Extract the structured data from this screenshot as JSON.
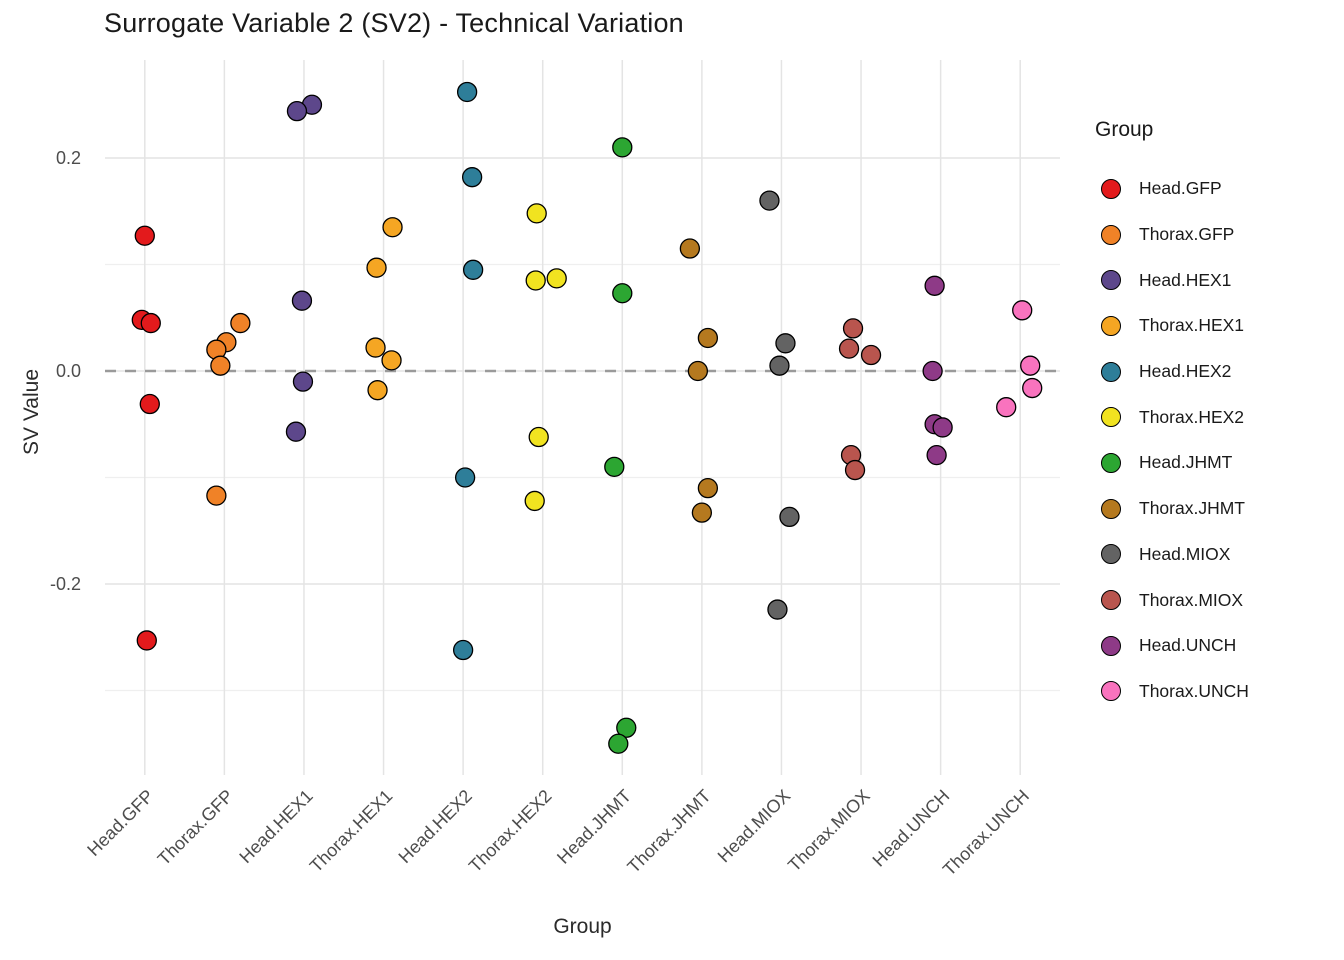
{
  "chart_data": {
    "type": "scatter",
    "title": "Surrogate Variable 2 (SV2) - Technical Variation",
    "xlabel": "Group",
    "ylabel": "SV Value",
    "legend_title": "Group",
    "grid": true,
    "legend_position": "right",
    "ylim": [
      -0.38,
      0.3
    ],
    "y_ticks": [
      {
        "label": "0.2",
        "value": 0.2
      },
      {
        "label": "0.0",
        "value": 0.0
      },
      {
        "label": "-0.2",
        "value": -0.2
      }
    ],
    "minor_ticks": [
      0.1,
      -0.1,
      -0.3
    ],
    "zero_line": {
      "value": 0,
      "style": "dashed",
      "color": "#9a9a9a"
    },
    "categories": [
      "Head.GFP",
      "Thorax.GFP",
      "Head.HEX1",
      "Thorax.HEX1",
      "Head.HEX2",
      "Thorax.HEX2",
      "Head.JHMT",
      "Thorax.JHMT",
      "Head.MIOX",
      "Thorax.MIOX",
      "Head.UNCH",
      "Thorax.UNCH"
    ],
    "groups": [
      {
        "name": "Head.GFP",
        "color": "#e31a1c",
        "points": [
          {
            "y": 0.127,
            "dx": 0
          },
          {
            "y": 0.048,
            "dx": -3
          },
          {
            "y": 0.045,
            "dx": 6
          },
          {
            "y": -0.031,
            "dx": 5
          },
          {
            "y": -0.253,
            "dx": 2
          }
        ]
      },
      {
        "name": "Thorax.GFP",
        "color": "#f08227",
        "points": [
          {
            "y": 0.045,
            "dx": 16
          },
          {
            "y": 0.027,
            "dx": 2
          },
          {
            "y": 0.02,
            "dx": -8
          },
          {
            "y": 0.005,
            "dx": -4
          },
          {
            "y": -0.117,
            "dx": -8
          }
        ]
      },
      {
        "name": "Head.HEX1",
        "color": "#5d478b",
        "points": [
          {
            "y": 0.25,
            "dx": 8
          },
          {
            "y": 0.244,
            "dx": -7
          },
          {
            "y": 0.066,
            "dx": -2
          },
          {
            "y": -0.01,
            "dx": -1
          },
          {
            "y": -0.057,
            "dx": -8
          }
        ]
      },
      {
        "name": "Thorax.HEX1",
        "color": "#f5a623",
        "points": [
          {
            "y": 0.135,
            "dx": 9
          },
          {
            "y": 0.097,
            "dx": -7
          },
          {
            "y": 0.022,
            "dx": -8
          },
          {
            "y": 0.01,
            "dx": 8
          },
          {
            "y": -0.018,
            "dx": -6
          }
        ]
      },
      {
        "name": "Head.HEX2",
        "color": "#2e7e99",
        "points": [
          {
            "y": 0.262,
            "dx": 4
          },
          {
            "y": 0.182,
            "dx": 9
          },
          {
            "y": 0.095,
            "dx": 10
          },
          {
            "y": -0.1,
            "dx": 2
          },
          {
            "y": -0.262,
            "dx": 0
          }
        ]
      },
      {
        "name": "Thorax.HEX2",
        "color": "#f1e320",
        "points": [
          {
            "y": 0.148,
            "dx": -6
          },
          {
            "y": 0.087,
            "dx": 14
          },
          {
            "y": 0.085,
            "dx": -7
          },
          {
            "y": -0.062,
            "dx": -4
          },
          {
            "y": -0.122,
            "dx": -8
          }
        ]
      },
      {
        "name": "Head.JHMT",
        "color": "#2ca632",
        "points": [
          {
            "y": 0.21,
            "dx": 0
          },
          {
            "y": 0.073,
            "dx": 0
          },
          {
            "y": -0.09,
            "dx": -8
          },
          {
            "y": -0.335,
            "dx": 4
          },
          {
            "y": -0.35,
            "dx": -4
          }
        ]
      },
      {
        "name": "Thorax.JHMT",
        "color": "#b5791f",
        "points": [
          {
            "y": 0.115,
            "dx": -12
          },
          {
            "y": 0.031,
            "dx": 6
          },
          {
            "y": 0.0,
            "dx": -4
          },
          {
            "y": -0.11,
            "dx": 6
          },
          {
            "y": -0.133,
            "dx": 0
          }
        ]
      },
      {
        "name": "Head.MIOX",
        "color": "#636363",
        "points": [
          {
            "y": 0.16,
            "dx": -12
          },
          {
            "y": 0.026,
            "dx": 4
          },
          {
            "y": 0.005,
            "dx": -2
          },
          {
            "y": -0.137,
            "dx": 8
          },
          {
            "y": -0.224,
            "dx": -4
          }
        ]
      },
      {
        "name": "Thorax.MIOX",
        "color": "#b9554e",
        "points": [
          {
            "y": 0.04,
            "dx": -8
          },
          {
            "y": 0.021,
            "dx": -12
          },
          {
            "y": 0.015,
            "dx": 10
          },
          {
            "y": -0.079,
            "dx": -10
          },
          {
            "y": -0.093,
            "dx": -6
          }
        ]
      },
      {
        "name": "Head.UNCH",
        "color": "#8e3a87",
        "points": [
          {
            "y": 0.08,
            "dx": -6
          },
          {
            "y": 0.0,
            "dx": -8
          },
          {
            "y": -0.05,
            "dx": -6
          },
          {
            "y": -0.053,
            "dx": 2
          },
          {
            "y": -0.079,
            "dx": -4
          }
        ]
      },
      {
        "name": "Thorax.UNCH",
        "color": "#f973be",
        "points": [
          {
            "y": 0.057,
            "dx": 2
          },
          {
            "y": 0.005,
            "dx": 10
          },
          {
            "y": -0.016,
            "dx": 12
          },
          {
            "y": -0.034,
            "dx": -14
          }
        ]
      }
    ]
  }
}
